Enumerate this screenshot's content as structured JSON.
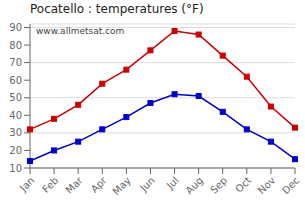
{
  "chart_data": {
    "type": "line",
    "title": "Pocatello : temperatures (°F)",
    "categories": [
      "Jan",
      "Feb",
      "Mar",
      "Apr",
      "May",
      "Jun",
      "Jul",
      "Aug",
      "Sep",
      "Oct",
      "Nov",
      "Dec"
    ],
    "series": [
      {
        "color": "#cc0000",
        "marker": "square",
        "values": [
          32,
          38,
          46,
          58,
          66,
          77,
          88,
          86,
          74,
          62,
          45,
          33
        ]
      },
      {
        "color": "#0000cc",
        "marker": "square",
        "values": [
          14,
          20,
          25,
          32,
          39,
          47,
          52,
          51,
          42,
          32,
          25,
          15
        ]
      }
    ],
    "ylim": [
      10,
      92
    ],
    "yticks": [
      10,
      20,
      30,
      40,
      50,
      60,
      70,
      80,
      90
    ],
    "grid": true,
    "annotations": [
      "www.allmetsat.com"
    ]
  }
}
